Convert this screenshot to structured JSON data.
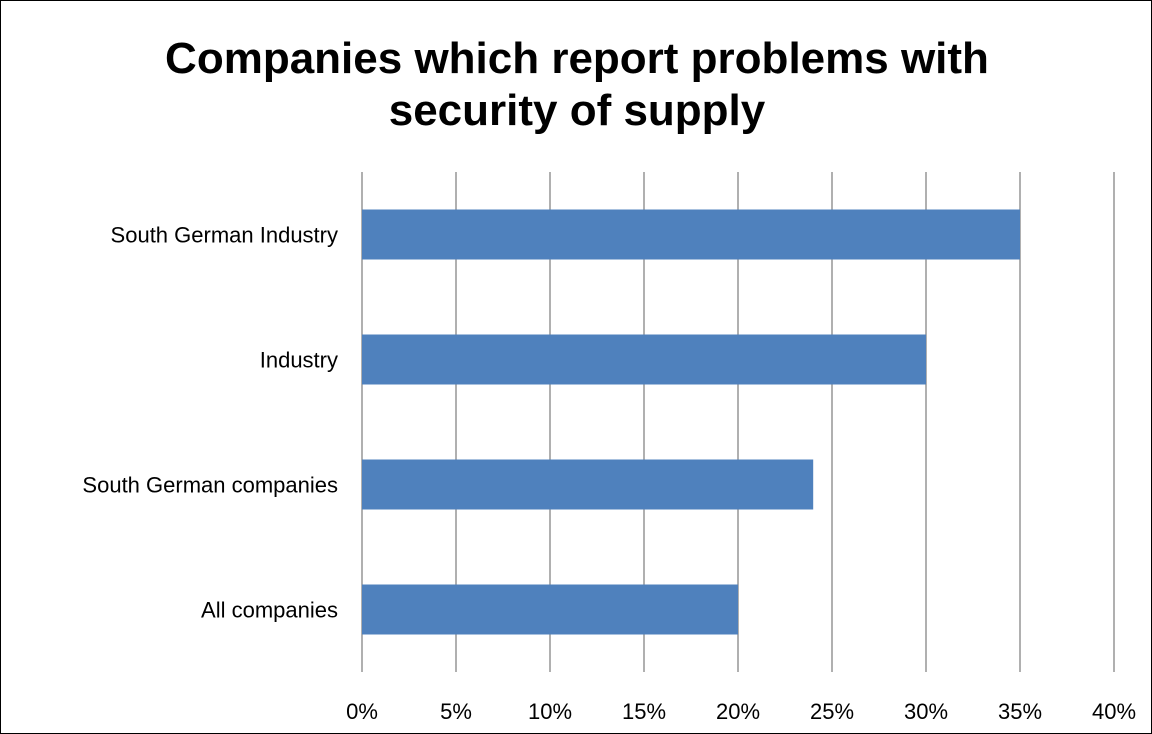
{
  "chart_data": {
    "type": "bar",
    "orientation": "horizontal",
    "title_lines": [
      "Companies which report problems with",
      "security of supply"
    ],
    "categories": [
      "South German Industry",
      "Industry",
      "South German companies",
      "All companies"
    ],
    "values": [
      35,
      30,
      24,
      20
    ],
    "value_unit": "%",
    "xlim": [
      0,
      40
    ],
    "xticks": [
      0,
      5,
      10,
      15,
      20,
      25,
      30,
      35,
      40
    ],
    "xtick_labels": [
      "0%",
      "5%",
      "10%",
      "15%",
      "20%",
      "25%",
      "30%",
      "35%",
      "40%"
    ],
    "grid": "vertical",
    "legend": "none",
    "bar_color": "#4F81BD",
    "grid_color": "#868686"
  }
}
